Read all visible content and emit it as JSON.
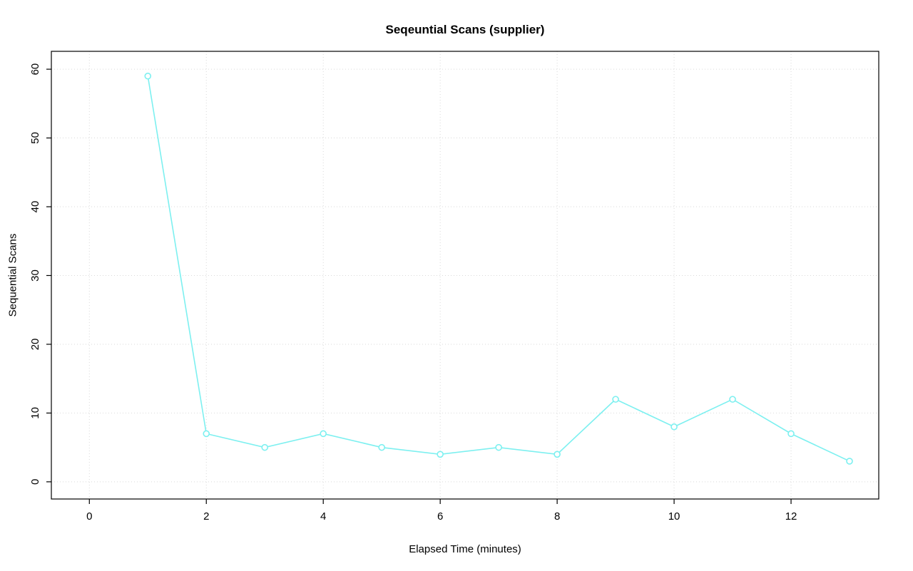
{
  "chart_data": {
    "type": "line",
    "title": "Seqeuntial Scans (supplier)",
    "xlabel": "Elapsed Time (minutes)",
    "ylabel": "Sequential Scans",
    "x": [
      1,
      2,
      3,
      4,
      5,
      6,
      7,
      8,
      9,
      10,
      11,
      12,
      13
    ],
    "values": [
      59,
      7,
      5,
      7,
      5,
      4,
      5,
      4,
      12,
      8,
      12,
      7,
      3
    ],
    "x_ticks": [
      0,
      2,
      4,
      6,
      8,
      10,
      12
    ],
    "y_ticks": [
      0,
      10,
      20,
      30,
      40,
      50,
      60
    ],
    "xlim": [
      -0.65,
      13.5
    ],
    "ylim": [
      -2.5,
      62.6
    ],
    "grid": true,
    "grid_style": "dotted",
    "grid_color": "#d9d9d9",
    "line_color": "#7df0f0",
    "marker": "open-circle",
    "box_color": "#000000",
    "legend": "none"
  }
}
